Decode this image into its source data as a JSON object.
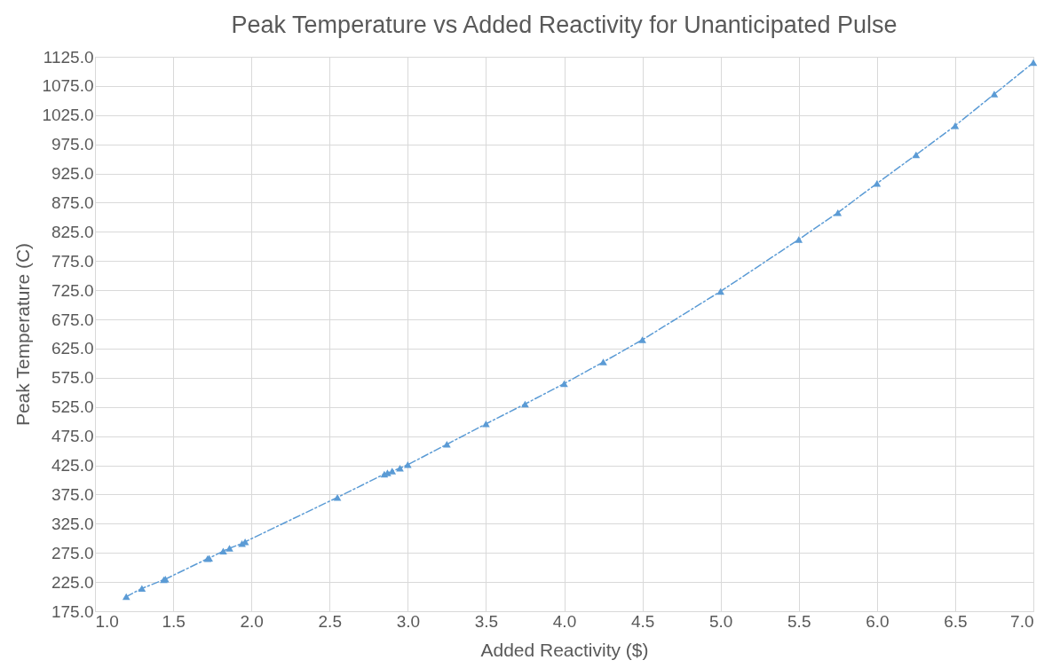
{
  "chart_data": {
    "type": "line",
    "title": "Peak Temperature vs Added Reactivity for Unanticipated Pulse",
    "xlabel": "Added Reactivity  ($)",
    "ylabel": "Peak Temperature (C)",
    "x": [
      1.2,
      1.3,
      1.44,
      1.45,
      1.72,
      1.73,
      1.82,
      1.86,
      1.94,
      1.96,
      2.55,
      2.85,
      2.87,
      2.9,
      2.95,
      3.0,
      3.25,
      3.5,
      3.75,
      4.0,
      4.25,
      4.5,
      5.0,
      5.5,
      5.75,
      6.0,
      6.25,
      6.5,
      6.75,
      7.0
    ],
    "series": [
      {
        "color": "#5b9bd5",
        "values": [
          200,
          214,
          229,
          230,
          265,
          266,
          278,
          283,
          291,
          294,
          370,
          410,
          412,
          415,
          420,
          426,
          461,
          496,
          530,
          565,
          602,
          640,
          723,
          812,
          858,
          908,
          957,
          1007,
          1061,
          1115
        ]
      }
    ],
    "xlim": [
      1.0,
      7.0
    ],
    "ylim": [
      175.0,
      1125.0
    ],
    "xticks": [
      {
        "value": 1.0,
        "label": "1.0"
      },
      {
        "value": 1.5,
        "label": "1.5"
      },
      {
        "value": 2.0,
        "label": "2.0"
      },
      {
        "value": 2.5,
        "label": "2.5"
      },
      {
        "value": 3.0,
        "label": "3.0"
      },
      {
        "value": 3.5,
        "label": "3.5"
      },
      {
        "value": 4.0,
        "label": "4.0"
      },
      {
        "value": 4.5,
        "label": "4.5"
      },
      {
        "value": 5.0,
        "label": "5.0"
      },
      {
        "value": 5.5,
        "label": "5.5"
      },
      {
        "value": 6.0,
        "label": "6.0"
      },
      {
        "value": 6.5,
        "label": "6.5"
      },
      {
        "value": 7.0,
        "label": "7.0"
      }
    ],
    "yticks": [
      {
        "value": 175,
        "label": "175.0"
      },
      {
        "value": 225,
        "label": "225.0"
      },
      {
        "value": 275,
        "label": "275.0"
      },
      {
        "value": 325,
        "label": "325.0"
      },
      {
        "value": 375,
        "label": "375.0"
      },
      {
        "value": 425,
        "label": "425.0"
      },
      {
        "value": 475,
        "label": "475.0"
      },
      {
        "value": 525,
        "label": "525.0"
      },
      {
        "value": 575,
        "label": "575.0"
      },
      {
        "value": 625,
        "label": "625.0"
      },
      {
        "value": 675,
        "label": "675.0"
      },
      {
        "value": 725,
        "label": "725.0"
      },
      {
        "value": 775,
        "label": "775.0"
      },
      {
        "value": 825,
        "label": "825.0"
      },
      {
        "value": 875,
        "label": "875.0"
      },
      {
        "value": 925,
        "label": "925.0"
      },
      {
        "value": 975,
        "label": "975.0"
      },
      {
        "value": 1025,
        "label": "1025.0"
      },
      {
        "value": 1075,
        "label": "1075.0"
      },
      {
        "value": 1125,
        "label": "1125.0"
      }
    ],
    "grid": true,
    "marker": "triangle",
    "line_style": "dashed",
    "legend": false
  }
}
